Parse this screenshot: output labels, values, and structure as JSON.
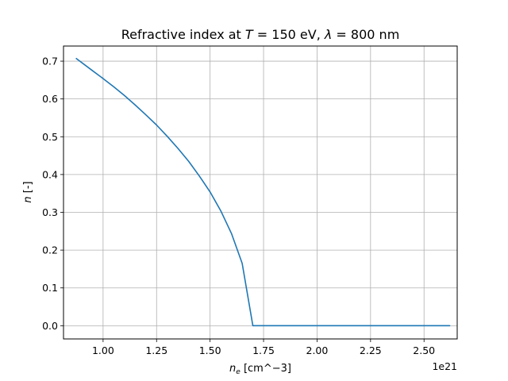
{
  "chart_data": {
    "type": "line",
    "title": {
      "prefix": "Refractive index at ",
      "T_symbol": "T",
      "T_value": " = 150 eV, ",
      "lambda_symbol": "λ",
      "lambda_value": " = 800 nm"
    },
    "xlabel": {
      "symbol": "n",
      "subscript": "e",
      "units": " [cm^−3]"
    },
    "ylabel": {
      "symbol": "n",
      "units": " [-]"
    },
    "x_offset_label": "1e21",
    "xlim": [
      0.815,
      2.655
    ],
    "ylim": [
      -0.035,
      0.74
    ],
    "x_scale": 1e+21,
    "xticks": [
      1.0,
      1.25,
      1.5,
      1.75,
      2.0,
      2.25,
      2.5
    ],
    "xtick_labels": [
      "1.00",
      "1.25",
      "1.50",
      "1.75",
      "2.00",
      "2.25",
      "2.50"
    ],
    "yticks": [
      0.0,
      0.1,
      0.2,
      0.3,
      0.4,
      0.5,
      0.6,
      0.7
    ],
    "ytick_labels": [
      "0.0",
      "0.1",
      "0.2",
      "0.3",
      "0.4",
      "0.5",
      "0.6",
      "0.7"
    ],
    "grid": true,
    "colors": {
      "line": "#1f77b4",
      "grid": "#b0b0b0"
    },
    "series": [
      {
        "x": [
          0.875,
          0.95,
          1.0,
          1.05,
          1.1,
          1.15,
          1.2,
          1.25,
          1.3,
          1.35,
          1.4,
          1.45,
          1.5,
          1.55,
          1.6,
          1.65,
          1.7,
          1.72,
          1.74,
          1.745,
          1.75,
          1.8,
          1.9,
          2.0,
          2.1,
          2.2,
          2.3,
          2.4,
          2.5,
          2.62
        ],
        "y": [
          0.707,
          0.675,
          0.654,
          0.632,
          0.609,
          0.584,
          0.558,
          0.531,
          0.501,
          0.469,
          0.435,
          0.396,
          0.354,
          0.304,
          0.244,
          0.165,
          0.0,
          0.0,
          0.0,
          0.0,
          0.0,
          0.0,
          0.0,
          0.0,
          0.0,
          0.0,
          0.0,
          0.0,
          0.0,
          0.0
        ]
      }
    ]
  }
}
